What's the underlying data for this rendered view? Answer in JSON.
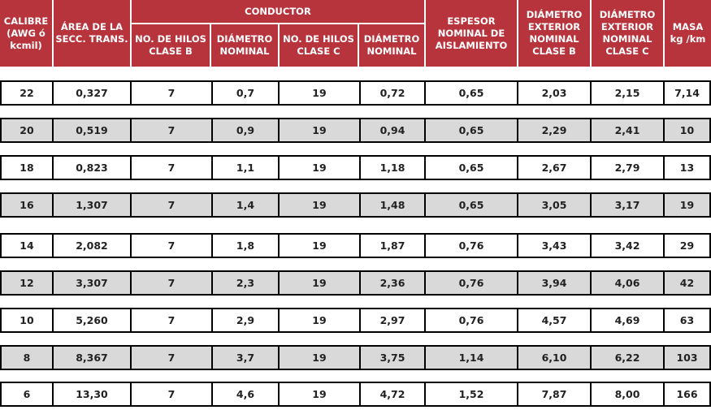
{
  "table": {
    "headers": {
      "calibre": "CALIBRE\n(AWG ó\nkcmil)",
      "area": "ÁREA DE LA\nSECC. TRANS.",
      "conductor": "CONDUCTOR",
      "hilos_b": "NO. DE HILOS\nCLASE B",
      "diam_b": "DIÁMETRO\nNOMINAL",
      "hilos_c": "NO. DE HILOS\nCLASE C",
      "diam_c": "DIÁMETRO\nNOMINAL",
      "espesor": "ESPESOR\nNOMINAL DE\nAISLAMIENTO",
      "ext_b": "DIÁMETRO\nEXTERIOR\nNOMINAL\nCLASE B",
      "ext_c": "DIÁMETRO\nEXTERIOR\nNOMINAL\nCLASE C",
      "masa": "MASA\nkg /km"
    },
    "rows": [
      [
        "22",
        "0,327",
        "7",
        "0,7",
        "19",
        "0,72",
        "0,65",
        "2,03",
        "2,15",
        "7,14"
      ],
      [
        "20",
        "0,519",
        "7",
        "0,9",
        "19",
        "0,94",
        "0,65",
        "2,29",
        "2,41",
        "10"
      ],
      [
        "18",
        "0,823",
        "7",
        "1,1",
        "19",
        "1,18",
        "0,65",
        "2,67",
        "2,79",
        "13"
      ],
      [
        "16",
        "1,307",
        "7",
        "1,4",
        "19",
        "1,48",
        "0,65",
        "3,05",
        "3,17",
        "19"
      ],
      [
        "14",
        "2,082",
        "7",
        "1,8",
        "19",
        "1,87",
        "0,76",
        "3,43",
        "3,42",
        "29"
      ],
      [
        "12",
        "3,307",
        "7",
        "2,3",
        "19",
        "2,36",
        "0,76",
        "3,94",
        "4,06",
        "42"
      ],
      [
        "10",
        "5,260",
        "7",
        "2,9",
        "19",
        "2,97",
        "0,76",
        "4,57",
        "4,69",
        "63"
      ],
      [
        "8",
        "8,367",
        "7",
        "3,7",
        "19",
        "3,75",
        "1,14",
        "6,10",
        "6,22",
        "103"
      ],
      [
        "6",
        "13,30",
        "7",
        "4,6",
        "19",
        "4,72",
        "1,52",
        "7,87",
        "8,00",
        "166"
      ]
    ],
    "colors": {
      "header_bg": "#b8343d",
      "header_text": "#ffffff",
      "shaded_row": "#d9d9d9",
      "plain_row": "#ffffff",
      "border": "#000000"
    }
  }
}
